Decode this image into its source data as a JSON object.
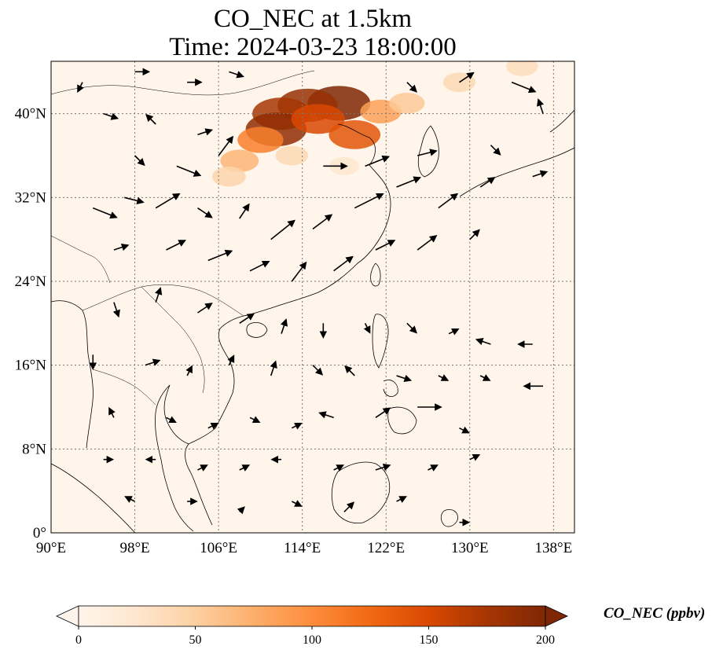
{
  "title": {
    "line1": "CO_NEC at 1.5km",
    "line2": "Time: 2024-03-23 18:00:00"
  },
  "map": {
    "extent": {
      "lon_min": 90,
      "lon_max": 140,
      "lat_min": 0,
      "lat_max": 45
    },
    "gridlines": true,
    "x_ticks": [
      {
        "value": 90,
        "label": "90°E"
      },
      {
        "value": 98,
        "label": "98°E"
      },
      {
        "value": 106,
        "label": "106°E"
      },
      {
        "value": 114,
        "label": "114°E"
      },
      {
        "value": 122,
        "label": "122°E"
      },
      {
        "value": 130,
        "label": "130°E"
      },
      {
        "value": 138,
        "label": "138°E"
      }
    ],
    "y_ticks": [
      {
        "value": 0,
        "label": "0°"
      },
      {
        "value": 8,
        "label": "8°N"
      },
      {
        "value": 16,
        "label": "16°N"
      },
      {
        "value": 24,
        "label": "24°N"
      },
      {
        "value": 32,
        "label": "32°N"
      },
      {
        "value": 40,
        "label": "40°N"
      }
    ],
    "background_color": "#fff5eb",
    "coastline_color": "#000000"
  },
  "colorbar": {
    "label": "CO_NEC (ppbv)",
    "min": 0,
    "max": 200,
    "extend": "both",
    "ticks": [
      {
        "value": 0,
        "label": "0"
      },
      {
        "value": 50,
        "label": "50"
      },
      {
        "value": 100,
        "label": "100"
      },
      {
        "value": 150,
        "label": "150"
      },
      {
        "value": 200,
        "label": "200"
      }
    ],
    "colors": [
      "#fff5eb",
      "#fee6ce",
      "#fdd0a2",
      "#fdae6b",
      "#fd8d3c",
      "#f16913",
      "#d94801",
      "#a63603",
      "#7f2704"
    ]
  },
  "concentration_field": [
    {
      "lon": 117.5,
      "lat": 41.0,
      "value": 200
    },
    {
      "lon": 114.5,
      "lat": 40.8,
      "value": 185
    },
    {
      "lon": 112.0,
      "lat": 40.0,
      "value": 175
    },
    {
      "lon": 111.5,
      "lat": 38.5,
      "value": 190
    },
    {
      "lon": 115.5,
      "lat": 39.5,
      "value": 150
    },
    {
      "lon": 119.0,
      "lat": 38.0,
      "value": 140
    },
    {
      "lon": 110.0,
      "lat": 37.5,
      "value": 110
    },
    {
      "lon": 108.0,
      "lat": 35.5,
      "value": 70
    },
    {
      "lon": 107.0,
      "lat": 34.0,
      "value": 45
    },
    {
      "lon": 121.5,
      "lat": 40.2,
      "value": 85
    },
    {
      "lon": 124.0,
      "lat": 41.0,
      "value": 55
    },
    {
      "lon": 129.0,
      "lat": 43.0,
      "value": 40
    },
    {
      "lon": 135.0,
      "lat": 44.5,
      "value": 35
    },
    {
      "lon": 113.0,
      "lat": 36.0,
      "value": 40
    },
    {
      "lon": 118.0,
      "lat": 35.0,
      "value": 25
    }
  ],
  "wind_vectors": [
    {
      "lon": 95,
      "lat": 40,
      "u": 3,
      "v": -1
    },
    {
      "lon": 100,
      "lat": 39,
      "u": -2,
      "v": 2
    },
    {
      "lon": 104,
      "lat": 38,
      "u": 3,
      "v": 1
    },
    {
      "lon": 98,
      "lat": 36,
      "u": 2,
      "v": -2
    },
    {
      "lon": 102,
      "lat": 35,
      "u": 5,
      "v": -2
    },
    {
      "lon": 106,
      "lat": 36,
      "u": 3,
      "v": 4
    },
    {
      "lon": 94,
      "lat": 31,
      "u": 5,
      "v": -2
    },
    {
      "lon": 97,
      "lat": 32,
      "u": 4,
      "v": -1
    },
    {
      "lon": 100,
      "lat": 31,
      "u": 5,
      "v": 3
    },
    {
      "lon": 104,
      "lat": 31,
      "u": 3,
      "v": -2
    },
    {
      "lon": 108,
      "lat": 30,
      "u": 2,
      "v": 3
    },
    {
      "lon": 111,
      "lat": 28,
      "u": 5,
      "v": 4
    },
    {
      "lon": 115,
      "lat": 29,
      "u": 4,
      "v": 3
    },
    {
      "lon": 119,
      "lat": 31,
      "u": 6,
      "v": 3
    },
    {
      "lon": 123,
      "lat": 33,
      "u": 5,
      "v": 2
    },
    {
      "lon": 127,
      "lat": 31,
      "u": 4,
      "v": 3
    },
    {
      "lon": 116,
      "lat": 35,
      "u": 5,
      "v": 0
    },
    {
      "lon": 120,
      "lat": 35,
      "u": 5,
      "v": 2
    },
    {
      "lon": 125,
      "lat": 36,
      "u": 4,
      "v": 1
    },
    {
      "lon": 96,
      "lat": 27,
      "u": 3,
      "v": 1
    },
    {
      "lon": 101,
      "lat": 27,
      "u": 4,
      "v": 2
    },
    {
      "lon": 105,
      "lat": 26,
      "u": 5,
      "v": 2
    },
    {
      "lon": 109,
      "lat": 25,
      "u": 4,
      "v": 2
    },
    {
      "lon": 113,
      "lat": 24,
      "u": 3,
      "v": 4
    },
    {
      "lon": 117,
      "lat": 25,
      "u": 4,
      "v": 3
    },
    {
      "lon": 121,
      "lat": 27,
      "u": 4,
      "v": 2
    },
    {
      "lon": 125,
      "lat": 27,
      "u": 4,
      "v": 3
    },
    {
      "lon": 130,
      "lat": 28,
      "u": 2,
      "v": 2
    },
    {
      "lon": 96,
      "lat": 22,
      "u": 1,
      "v": -3
    },
    {
      "lon": 100,
      "lat": 22,
      "u": 1,
      "v": 3
    },
    {
      "lon": 104,
      "lat": 21,
      "u": 3,
      "v": 2
    },
    {
      "lon": 108,
      "lat": 20,
      "u": 3,
      "v": 2
    },
    {
      "lon": 112,
      "lat": 19,
      "u": 1,
      "v": 3
    },
    {
      "lon": 116,
      "lat": 20,
      "u": 0,
      "v": -3
    },
    {
      "lon": 120,
      "lat": 20,
      "u": 1,
      "v": -2
    },
    {
      "lon": 124,
      "lat": 20,
      "u": 2,
      "v": -2
    },
    {
      "lon": 128,
      "lat": 19,
      "u": 2,
      "v": 1
    },
    {
      "lon": 132,
      "lat": 18,
      "u": -3,
      "v": 1
    },
    {
      "lon": 136,
      "lat": 18,
      "u": -3,
      "v": 0
    },
    {
      "lon": 94,
      "lat": 17,
      "u": 0,
      "v": -3
    },
    {
      "lon": 99,
      "lat": 16,
      "u": 3,
      "v": 1
    },
    {
      "lon": 103,
      "lat": 15,
      "u": 1,
      "v": 2
    },
    {
      "lon": 107,
      "lat": 16,
      "u": 1,
      "v": 2
    },
    {
      "lon": 111,
      "lat": 15,
      "u": 1,
      "v": 3
    },
    {
      "lon": 115,
      "lat": 16,
      "u": 2,
      "v": -2
    },
    {
      "lon": 119,
      "lat": 15,
      "u": -2,
      "v": 2
    },
    {
      "lon": 123,
      "lat": 15,
      "u": 3,
      "v": -1
    },
    {
      "lon": 127,
      "lat": 15,
      "u": 2,
      "v": -1
    },
    {
      "lon": 131,
      "lat": 15,
      "u": 2,
      "v": -1
    },
    {
      "lon": 137,
      "lat": 14,
      "u": -4,
      "v": 0
    },
    {
      "lon": 96,
      "lat": 11,
      "u": -1,
      "v": 2
    },
    {
      "lon": 101,
      "lat": 11,
      "u": 2,
      "v": -1
    },
    {
      "lon": 105,
      "lat": 10,
      "u": 2,
      "v": 1
    },
    {
      "lon": 109,
      "lat": 11,
      "u": 2,
      "v": -1
    },
    {
      "lon": 113,
      "lat": 10,
      "u": 2,
      "v": 1
    },
    {
      "lon": 117,
      "lat": 11,
      "u": -3,
      "v": 1
    },
    {
      "lon": 121,
      "lat": 11,
      "u": 3,
      "v": 2
    },
    {
      "lon": 125,
      "lat": 12,
      "u": 5,
      "v": 0
    },
    {
      "lon": 129,
      "lat": 10,
      "u": 2,
      "v": -1
    },
    {
      "lon": 95,
      "lat": 7,
      "u": 2,
      "v": 0
    },
    {
      "lon": 100,
      "lat": 7,
      "u": -2,
      "v": 0
    },
    {
      "lon": 104,
      "lat": 6,
      "u": 2,
      "v": 1
    },
    {
      "lon": 108,
      "lat": 6,
      "u": 2,
      "v": 1
    },
    {
      "lon": 112,
      "lat": 7,
      "u": -2,
      "v": 0
    },
    {
      "lon": 117,
      "lat": 6,
      "u": 2,
      "v": 1
    },
    {
      "lon": 121,
      "lat": 6,
      "u": 3,
      "v": 1
    },
    {
      "lon": 126,
      "lat": 6,
      "u": 2,
      "v": 1
    },
    {
      "lon": 130,
      "lat": 7,
      "u": 2,
      "v": 1
    },
    {
      "lon": 98,
      "lat": 3,
      "u": -2,
      "v": 1
    },
    {
      "lon": 103,
      "lat": 3,
      "u": 2,
      "v": 0
    },
    {
      "lon": 108,
      "lat": 2,
      "u": 1,
      "v": 1
    },
    {
      "lon": 113,
      "lat": 3,
      "u": 2,
      "v": -1
    },
    {
      "lon": 118,
      "lat": 2,
      "u": 2,
      "v": 2
    },
    {
      "lon": 123,
      "lat": 3,
      "u": 2,
      "v": 1
    },
    {
      "lon": 129,
      "lat": 1,
      "u": 2,
      "v": 0
    },
    {
      "lon": 132,
      "lat": 37,
      "u": 2,
      "v": -2
    },
    {
      "lon": 136,
      "lat": 34,
      "u": 3,
      "v": 1
    },
    {
      "lon": 131,
      "lat": 33,
      "u": 3,
      "v": 2
    },
    {
      "lon": 137,
      "lat": 40,
      "u": -1,
      "v": 3
    },
    {
      "lon": 134,
      "lat": 43,
      "u": 5,
      "v": -2
    },
    {
      "lon": 129,
      "lat": 43,
      "u": 3,
      "v": 2
    },
    {
      "lon": 124,
      "lat": 43,
      "u": 2,
      "v": -2
    },
    {
      "lon": 107,
      "lat": 44,
      "u": 3,
      "v": -1
    },
    {
      "lon": 103,
      "lat": 43,
      "u": 3,
      "v": 0
    },
    {
      "lon": 98,
      "lat": 44,
      "u": 3,
      "v": 0
    },
    {
      "lon": 93,
      "lat": 43,
      "u": -1,
      "v": -2
    }
  ]
}
